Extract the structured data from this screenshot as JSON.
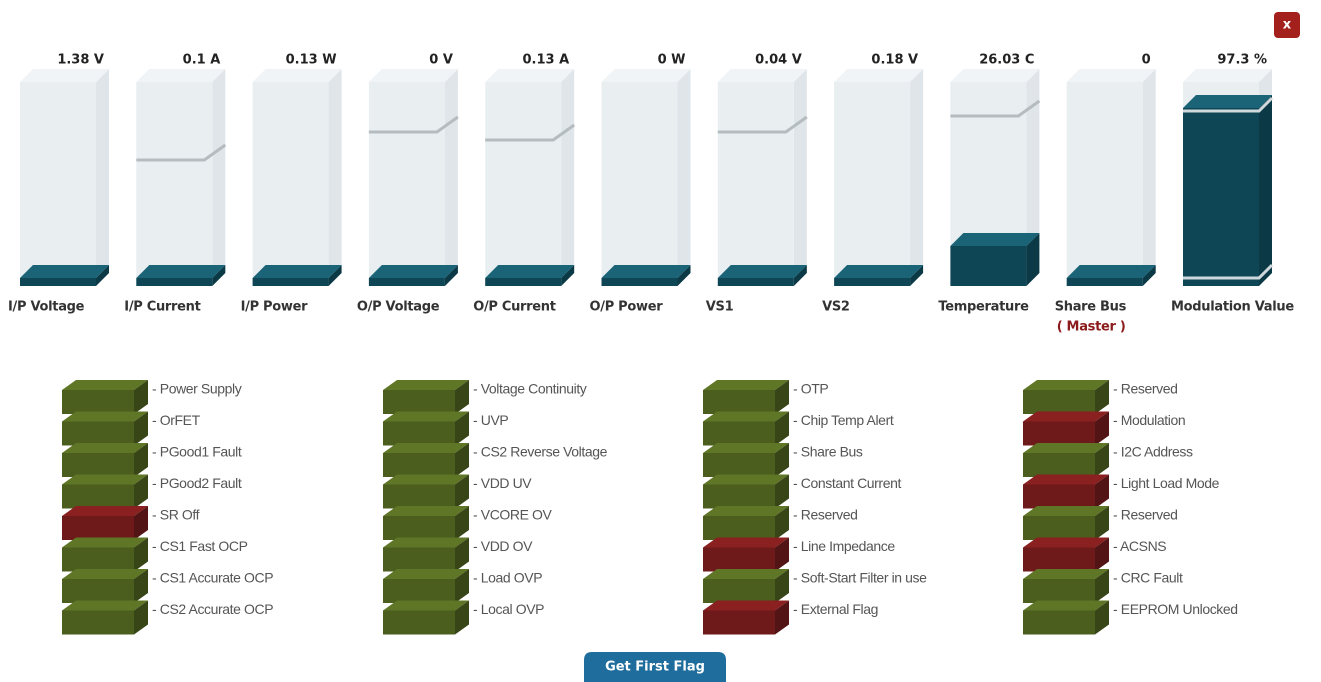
{
  "close": "x",
  "gauges": [
    {
      "reading": "1.38 V",
      "name": "I/P Voltage"
    },
    {
      "reading": "0.1 A",
      "name": "I/P Current"
    },
    {
      "reading": "0.13 W",
      "name": "I/P Power"
    },
    {
      "reading": "0 V",
      "name": "O/P Voltage"
    },
    {
      "reading": "0.13 A",
      "name": "O/P Current"
    },
    {
      "reading": "0 W",
      "name": "O/P Power"
    },
    {
      "reading": "0.04 V",
      "name": "VS1"
    },
    {
      "reading": "0.18 V",
      "name": "VS2"
    },
    {
      "reading": "26.03 C",
      "name": "Temperature"
    },
    {
      "reading": "0",
      "name": "Share Bus",
      "note": "( Master )"
    },
    {
      "reading": "97.3 %",
      "name": "Modulation Value"
    }
  ],
  "flags": [
    [
      {
        "label": "- Power Supply",
        "color": "#4b5e1e"
      },
      {
        "label": "- OrFET",
        "color": "#4b5e1e"
      },
      {
        "label": "- PGood1 Fault",
        "color": "#4b5e1e"
      },
      {
        "label": "- PGood2 Fault",
        "color": "#4b5e1e"
      },
      {
        "label": "- SR Off",
        "color": "#6e1a1a"
      },
      {
        "label": "- CS1 Fast OCP",
        "color": "#4b5e1e"
      },
      {
        "label": "- CS1 Accurate OCP",
        "color": "#4b5e1e"
      },
      {
        "label": "- CS2 Accurate OCP",
        "color": "#4b5e1e"
      }
    ],
    [
      {
        "label": "- Voltage Continuity",
        "color": "#4b5e1e"
      },
      {
        "label": "- UVP",
        "color": "#4b5e1e"
      },
      {
        "label": "- CS2 Reverse Voltage",
        "color": "#4b5e1e"
      },
      {
        "label": "- VDD UV",
        "color": "#4b5e1e"
      },
      {
        "label": "- VCORE OV",
        "color": "#4b5e1e"
      },
      {
        "label": "- VDD OV",
        "color": "#4b5e1e"
      },
      {
        "label": "- Load OVP",
        "color": "#4b5e1e"
      },
      {
        "label": "- Local OVP",
        "color": "#4b5e1e"
      }
    ],
    [
      {
        "label": "- OTP",
        "color": "#4b5e1e"
      },
      {
        "label": "- Chip Temp Alert",
        "color": "#4b5e1e"
      },
      {
        "label": "- Share Bus",
        "color": "#4b5e1e"
      },
      {
        "label": "- Constant Current",
        "color": "#4b5e1e"
      },
      {
        "label": "- Reserved",
        "color": "#4b5e1e"
      },
      {
        "label": "- Line Impedance",
        "color": "#6e1a1a"
      },
      {
        "label": "- Soft-Start Filter in use",
        "color": "#4b5e1e"
      },
      {
        "label": "- External Flag",
        "color": "#6e1a1a"
      }
    ],
    [
      {
        "label": "- Reserved",
        "color": "#4b5e1e"
      },
      {
        "label": "- Modulation",
        "color": "#6e1a1a"
      },
      {
        "label": "- I2C Address",
        "color": "#4b5e1e"
      },
      {
        "label": "- Light Load Mode",
        "color": "#6e1a1a"
      },
      {
        "label": "- Reserved",
        "color": "#4b5e1e"
      },
      {
        "label": "- ACSNS",
        "color": "#6e1a1a"
      },
      {
        "label": "- CRC Fault",
        "color": "#4b5e1e"
      },
      {
        "label": "- EEPROM Unlocked",
        "color": "#4b5e1e"
      }
    ]
  ],
  "button": "Get First Flag"
}
